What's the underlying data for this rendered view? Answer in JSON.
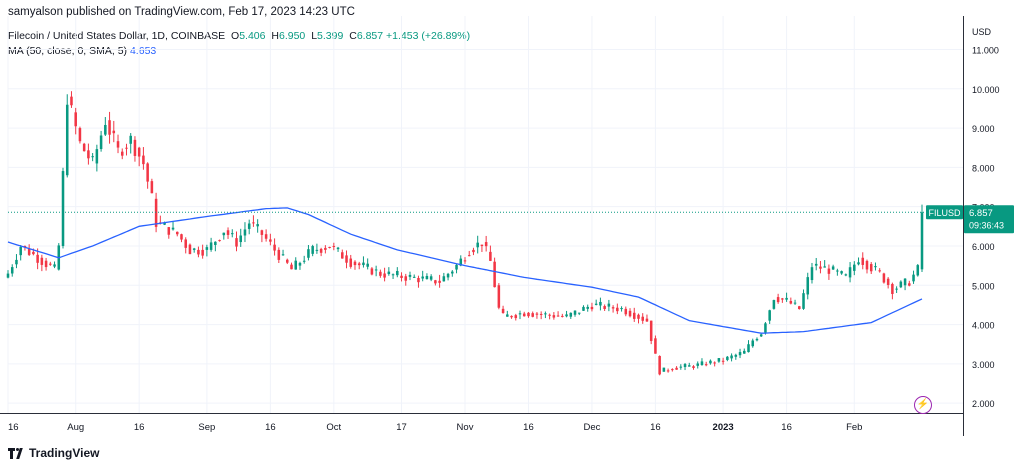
{
  "header": {
    "publish_line": "samyalson published on TradingView.com, Feb 17, 2023 14:23 UTC"
  },
  "legend": {
    "symbol": "Filecoin / United States Dollar, 1D, COINBASE",
    "o_label": "O",
    "o_value": "5.406",
    "h_label": "H",
    "h_value": "6.950",
    "l_label": "L",
    "l_value": "5.399",
    "c_label": "C",
    "c_value": "6.857",
    "change": "+1.453 (+26.89%)",
    "ma_label": "MA (50, close, 0, SMA, 5)",
    "ma_value": "4.653"
  },
  "price_tag": {
    "symbol": "FILUSD",
    "price": "6.857",
    "countdown": "09:36:43"
  },
  "footer": {
    "brand": "TradingView"
  },
  "icons": {
    "logo": "tradingview-logo-icon",
    "flash": "lightning-bolt-icon"
  },
  "colors": {
    "up": "#089981",
    "down": "#f23645",
    "ma": "#2962ff",
    "grid": "#f0f3fa",
    "last_price_line": "#089981"
  },
  "chart_data": {
    "type": "candlestick",
    "currency_label": "USD",
    "y_ticks": [
      "2.000",
      "3.000",
      "4.000",
      "5.000",
      "6.000",
      "7.000",
      "8.000",
      "9.000",
      "10.000",
      "11.000"
    ],
    "ylim": [
      1.75,
      11.75
    ],
    "x_ticks": [
      "16",
      "Aug",
      "16",
      "Sep",
      "16",
      "Oct",
      "17",
      "Nov",
      "16",
      "Dec",
      "16",
      "2023",
      "16",
      "Feb"
    ],
    "x_tick_dates": [
      "2022-07-16",
      "2022-08-01",
      "2022-08-16",
      "2022-09-01",
      "2022-09-16",
      "2022-10-01",
      "2022-10-17",
      "2022-11-01",
      "2022-11-16",
      "2022-12-01",
      "2022-12-16",
      "2023-01-01",
      "2023-01-16",
      "2023-02-01"
    ],
    "start_date": "2022-07-16",
    "end_date": "2023-02-17",
    "close_anchors": [
      [
        "2022-07-16",
        5.3
      ],
      [
        "2022-07-19",
        6.0
      ],
      [
        "2022-07-23",
        5.7
      ],
      [
        "2022-07-27",
        5.4
      ],
      [
        "2022-07-28",
        6.0
      ],
      [
        "2022-07-29",
        7.8
      ],
      [
        "2022-07-30",
        9.8
      ],
      [
        "2022-08-02",
        8.6
      ],
      [
        "2022-08-05",
        8.1
      ],
      [
        "2022-08-08",
        9.2
      ],
      [
        "2022-08-11",
        8.4
      ],
      [
        "2022-08-14",
        8.7
      ],
      [
        "2022-08-17",
        8.1
      ],
      [
        "2022-08-19",
        7.2
      ],
      [
        "2022-08-20",
        6.6
      ],
      [
        "2022-08-25",
        6.3
      ],
      [
        "2022-08-28",
        5.9
      ],
      [
        "2022-09-01",
        5.9
      ],
      [
        "2022-09-05",
        6.4
      ],
      [
        "2022-09-08",
        6.1
      ],
      [
        "2022-09-11",
        6.6
      ],
      [
        "2022-09-14",
        6.3
      ],
      [
        "2022-09-17",
        5.9
      ],
      [
        "2022-09-21",
        5.4
      ],
      [
        "2022-09-26",
        5.9
      ],
      [
        "2022-09-30",
        6.0
      ],
      [
        "2022-10-05",
        5.6
      ],
      [
        "2022-10-12",
        5.3
      ],
      [
        "2022-10-19",
        5.2
      ],
      [
        "2022-10-26",
        5.1
      ],
      [
        "2022-10-30",
        5.5
      ],
      [
        "2022-11-02",
        5.9
      ],
      [
        "2022-11-05",
        6.1
      ],
      [
        "2022-11-07",
        5.6
      ],
      [
        "2022-11-09",
        4.4
      ],
      [
        "2022-11-10",
        4.2
      ],
      [
        "2022-11-15",
        4.3
      ],
      [
        "2022-11-25",
        4.2
      ],
      [
        "2022-12-01",
        4.5
      ],
      [
        "2022-12-08",
        4.4
      ],
      [
        "2022-12-14",
        4.1
      ],
      [
        "2022-12-16",
        3.2
      ],
      [
        "2022-12-17",
        2.8
      ],
      [
        "2022-12-20",
        2.9
      ],
      [
        "2022-12-25",
        2.95
      ],
      [
        "2023-01-01",
        3.1
      ],
      [
        "2023-01-06",
        3.3
      ],
      [
        "2023-01-08",
        3.6
      ],
      [
        "2023-01-10",
        3.8
      ],
      [
        "2023-01-13",
        4.7
      ],
      [
        "2023-01-16",
        4.6
      ],
      [
        "2023-01-19",
        4.4
      ],
      [
        "2023-01-22",
        5.5
      ],
      [
        "2023-01-26",
        5.4
      ],
      [
        "2023-01-30",
        5.2
      ],
      [
        "2023-02-02",
        5.7
      ],
      [
        "2023-02-07",
        5.3
      ],
      [
        "2023-02-10",
        4.9
      ],
      [
        "2023-02-14",
        5.1
      ],
      [
        "2023-02-16",
        5.4
      ],
      [
        "2023-02-17",
        6.857
      ]
    ],
    "ma_anchors": [
      [
        "2022-07-16",
        6.1
      ],
      [
        "2022-07-28",
        5.7
      ],
      [
        "2022-08-05",
        6.0
      ],
      [
        "2022-08-16",
        6.5
      ],
      [
        "2022-09-01",
        6.75
      ],
      [
        "2022-09-15",
        6.95
      ],
      [
        "2022-09-20",
        6.97
      ],
      [
        "2022-09-25",
        6.8
      ],
      [
        "2022-10-05",
        6.3
      ],
      [
        "2022-10-16",
        5.9
      ],
      [
        "2022-11-01",
        5.5
      ],
      [
        "2022-11-15",
        5.2
      ],
      [
        "2022-12-01",
        4.95
      ],
      [
        "2022-12-12",
        4.7
      ],
      [
        "2022-12-24",
        4.1
      ],
      [
        "2023-01-10",
        3.78
      ],
      [
        "2023-01-20",
        3.82
      ],
      [
        "2023-02-05",
        4.05
      ],
      [
        "2023-02-17",
        4.653
      ]
    ]
  }
}
